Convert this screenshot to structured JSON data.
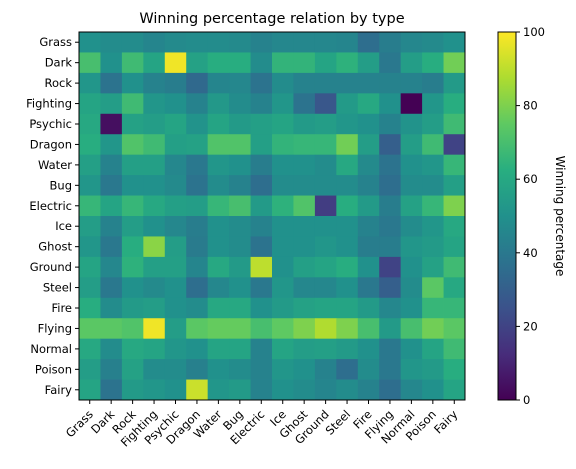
{
  "chart_data": {
    "type": "heatmap",
    "title": "Winning percentage relation by type",
    "rows": [
      "Grass",
      "Dark",
      "Rock",
      "Fighting",
      "Psychic",
      "Dragon",
      "Water",
      "Bug",
      "Electric",
      "Ice",
      "Ghost",
      "Ground",
      "Steel",
      "Fire",
      "Flying",
      "Normal",
      "Poison",
      "Fairy"
    ],
    "columns": [
      "Grass",
      "Dark",
      "Rock",
      "Fighting",
      "Psychic",
      "Dragon",
      "Water",
      "Bug",
      "Electric",
      "Ice",
      "Ghost",
      "Ground",
      "Steel",
      "Fire",
      "Flying",
      "Normal",
      "Poison",
      "Fairy"
    ],
    "values": [
      [
        50,
        48,
        48,
        45,
        47,
        48,
        48,
        47,
        44,
        46,
        46,
        46,
        45,
        36,
        42,
        46,
        47,
        50
      ],
      [
        70,
        50,
        68,
        58,
        98,
        57,
        62,
        62,
        48,
        65,
        65,
        58,
        64,
        55,
        40,
        55,
        62,
        78
      ],
      [
        52,
        38,
        50,
        44,
        42,
        34,
        45,
        46,
        38,
        48,
        44,
        44,
        44,
        44,
        44,
        44,
        42,
        54
      ],
      [
        58,
        55,
        68,
        52,
        50,
        44,
        53,
        48,
        44,
        52,
        38,
        27,
        54,
        60,
        50,
        0,
        52,
        62
      ],
      [
        60,
        4,
        57,
        55,
        58,
        51,
        58,
        54,
        56,
        58,
        54,
        55,
        52,
        50,
        44,
        51,
        55,
        68
      ],
      [
        62,
        52,
        72,
        68,
        56,
        57,
        72,
        72,
        56,
        65,
        66,
        66,
        78,
        55,
        30,
        55,
        68,
        20
      ],
      [
        56,
        44,
        56,
        56,
        46,
        40,
        52,
        50,
        42,
        50,
        50,
        48,
        60,
        47,
        38,
        50,
        52,
        66
      ],
      [
        52,
        40,
        50,
        50,
        47,
        38,
        48,
        44,
        36,
        48,
        48,
        48,
        48,
        44,
        36,
        48,
        48,
        56
      ],
      [
        66,
        58,
        66,
        60,
        56,
        55,
        66,
        70,
        54,
        64,
        72,
        18,
        62,
        54,
        42,
        57,
        66,
        80
      ],
      [
        55,
        44,
        55,
        50,
        46,
        42,
        50,
        48,
        44,
        50,
        50,
        50,
        50,
        44,
        40,
        48,
        52,
        60
      ],
      [
        52,
        40,
        62,
        82,
        55,
        41,
        50,
        48,
        38,
        50,
        50,
        52,
        50,
        42,
        42,
        52,
        54,
        58
      ],
      [
        58,
        46,
        64,
        56,
        56,
        45,
        60,
        54,
        90,
        50,
        56,
        58,
        62,
        50,
        20,
        50,
        57,
        68
      ],
      [
        55,
        40,
        50,
        47,
        50,
        36,
        46,
        50,
        40,
        52,
        46,
        46,
        50,
        40,
        30,
        48,
        74,
        60
      ],
      [
        62,
        48,
        54,
        55,
        50,
        48,
        60,
        60,
        50,
        54,
        57,
        58,
        58,
        54,
        46,
        50,
        66,
        66
      ],
      [
        74,
        74,
        72,
        98,
        55,
        74,
        76,
        76,
        70,
        75,
        80,
        88,
        80,
        70,
        54,
        70,
        78,
        74
      ],
      [
        60,
        48,
        60,
        58,
        52,
        50,
        58,
        58,
        44,
        58,
        55,
        56,
        54,
        50,
        40,
        50,
        58,
        68
      ],
      [
        55,
        43,
        57,
        48,
        48,
        43,
        50,
        48,
        44,
        52,
        50,
        44,
        36,
        48,
        40,
        52,
        54,
        62
      ],
      [
        58,
        38,
        54,
        52,
        50,
        92,
        52,
        54,
        44,
        50,
        48,
        45,
        48,
        44,
        36,
        46,
        50,
        58
      ]
    ],
    "colorbar": {
      "label": "Winning percentage",
      "min": 0,
      "max": 100,
      "ticks": [
        0,
        20,
        40,
        60,
        80,
        100
      ],
      "colormap": "viridis"
    }
  }
}
